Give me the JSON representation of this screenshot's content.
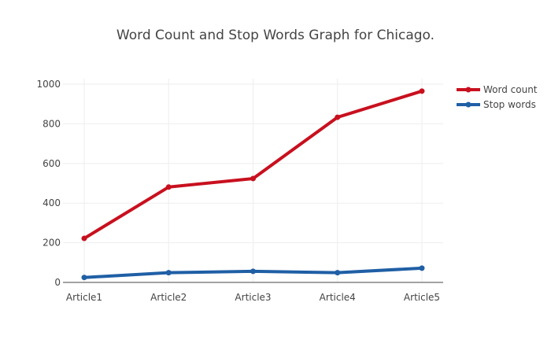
{
  "chart_data": {
    "type": "line",
    "title": "Word Count and Stop Words Graph for Chicago.",
    "xlabel": "",
    "ylabel": "",
    "categories": [
      "Article1",
      "Article2",
      "Article3",
      "Article4",
      "Article5"
    ],
    "series": [
      {
        "name": "Word count",
        "values": [
          222,
          481,
          524,
          833,
          965
        ],
        "color": "#c8101e"
      },
      {
        "name": "Stop words",
        "values": [
          25,
          49,
          56,
          49,
          72
        ],
        "color": "#1f5fa5"
      }
    ],
    "y_ticks": [
      "0",
      "200",
      "400",
      "600",
      "800",
      "1000"
    ],
    "ylim": [
      0,
      1000
    ],
    "grid": true,
    "legend_position": "top-right"
  }
}
